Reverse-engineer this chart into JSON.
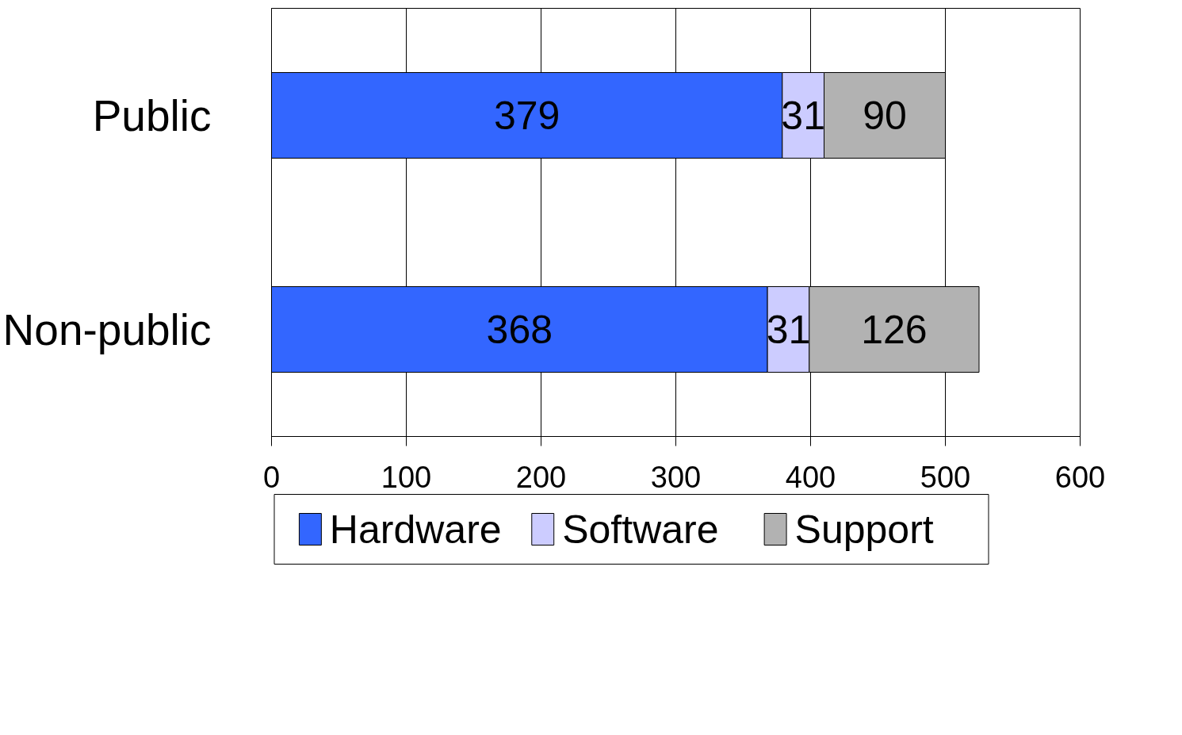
{
  "chart_data": {
    "type": "bar",
    "orientation": "horizontal",
    "stacked": true,
    "categories": [
      "Public",
      "Non-public"
    ],
    "series": [
      {
        "name": "Hardware",
        "color": "#3366ff",
        "values": [
          379,
          368
        ]
      },
      {
        "name": "Software",
        "color": "#ccccff",
        "values": [
          31,
          31
        ]
      },
      {
        "name": "Support",
        "color": "#b2b2b2",
        "values": [
          90,
          126
        ]
      }
    ],
    "xlim": [
      0,
      600
    ],
    "xticks": [
      0,
      100,
      200,
      300,
      400,
      500,
      600
    ],
    "grid": "x",
    "legend": "bottom",
    "data_labels": true
  }
}
